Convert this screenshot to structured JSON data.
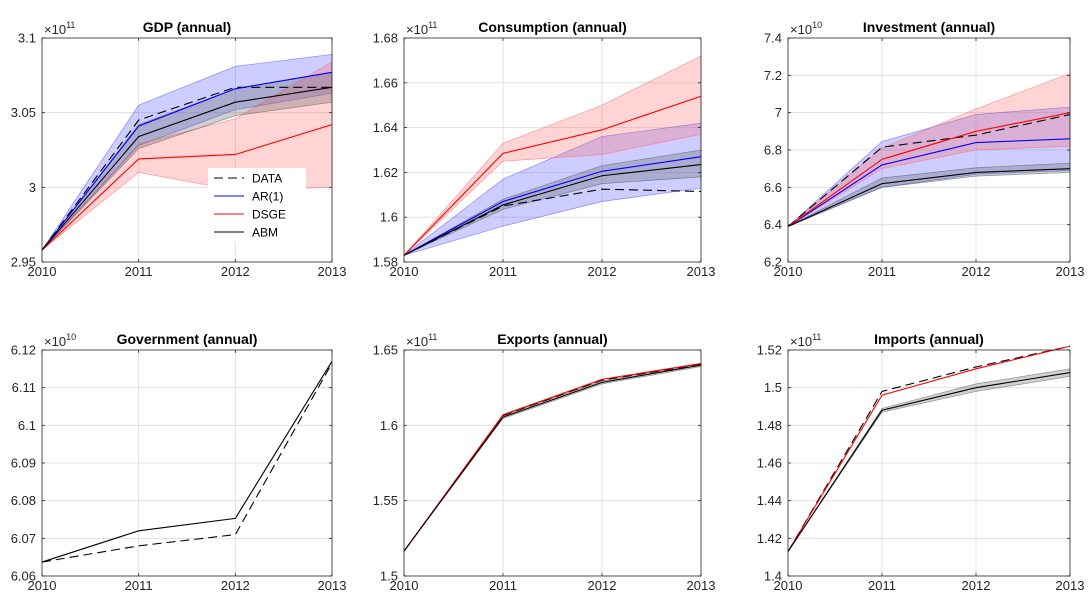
{
  "chart_data": [
    {
      "type": "line",
      "title": "GDP (annual)",
      "exponent_label": "×10",
      "exponent": "11",
      "x": [
        2010,
        2011,
        2012,
        2013
      ],
      "xticks": [
        "2010",
        "2011",
        "2012",
        "2013"
      ],
      "ylim": [
        2.95,
        3.1
      ],
      "yticks": [
        "2.95",
        "3",
        "3.05",
        "3.1"
      ],
      "grid": true,
      "legend": {
        "placement": "center-right",
        "entries": [
          "DATA",
          "AR(1)",
          "DSGE",
          "ABM"
        ]
      },
      "series": [
        {
          "name": "DATA",
          "color": "#000000",
          "dash": "dashed",
          "values": [
            2.958,
            3.045,
            3.067,
            3.067
          ]
        },
        {
          "name": "AR(1)",
          "color": "#0000ff",
          "dash": "solid",
          "values": [
            2.958,
            3.041,
            3.066,
            3.077
          ],
          "band_low": [
            2.958,
            3.028,
            3.052,
            3.063
          ],
          "band_high": [
            2.958,
            3.055,
            3.081,
            3.089
          ],
          "band_color": "#4d4dff"
        },
        {
          "name": "DSGE",
          "color": "#ff0000",
          "dash": "solid",
          "values": [
            2.958,
            3.019,
            3.022,
            3.042
          ],
          "band_low": [
            2.958,
            3.01,
            2.998,
            3.0
          ],
          "band_high": [
            2.958,
            3.029,
            3.046,
            3.084
          ],
          "band_color": "#ff6666"
        },
        {
          "name": "ABM",
          "color": "#000000",
          "dash": "solid",
          "values": [
            2.958,
            3.034,
            3.057,
            3.067
          ],
          "band_low": [
            2.958,
            3.026,
            3.048,
            3.057
          ],
          "band_high": [
            2.958,
            3.042,
            3.066,
            3.077
          ],
          "band_color": "#555555"
        }
      ]
    },
    {
      "type": "line",
      "title": "Consumption (annual)",
      "exponent_label": "×10",
      "exponent": "11",
      "x": [
        2010,
        2011,
        2012,
        2013
      ],
      "xticks": [
        "2010",
        "2011",
        "2012",
        "2013"
      ],
      "ylim": [
        1.58,
        1.68
      ],
      "yticks": [
        "1.58",
        "1.6",
        "1.62",
        "1.64",
        "1.66",
        "1.68"
      ],
      "grid": true,
      "series": [
        {
          "name": "DATA",
          "color": "#000000",
          "dash": "dashed",
          "values": [
            1.583,
            1.605,
            1.6125,
            1.6115
          ]
        },
        {
          "name": "AR(1)",
          "color": "#0000ff",
          "dash": "solid",
          "values": [
            1.583,
            1.607,
            1.6205,
            1.627
          ],
          "band_low": [
            1.583,
            1.596,
            1.607,
            1.613
          ],
          "band_high": [
            1.583,
            1.617,
            1.636,
            1.642
          ],
          "band_color": "#4d4dff"
        },
        {
          "name": "DSGE",
          "color": "#ff0000",
          "dash": "solid",
          "values": [
            1.583,
            1.6285,
            1.639,
            1.654
          ],
          "band_low": [
            1.583,
            1.625,
            1.628,
            1.637
          ],
          "band_high": [
            1.583,
            1.633,
            1.65,
            1.672
          ],
          "band_color": "#ff6666"
        },
        {
          "name": "ABM",
          "color": "#000000",
          "dash": "solid",
          "values": [
            1.583,
            1.6055,
            1.6185,
            1.6235
          ],
          "band_low": [
            1.583,
            1.6035,
            1.615,
            1.618
          ],
          "band_high": [
            1.583,
            1.608,
            1.623,
            1.63
          ],
          "band_color": "#555555"
        }
      ]
    },
    {
      "type": "line",
      "title": "Investment (annual)",
      "exponent_label": "×10",
      "exponent": "10",
      "x": [
        2010,
        2011,
        2012,
        2013
      ],
      "xticks": [
        "2010",
        "2011",
        "2012",
        "2013"
      ],
      "ylim": [
        6.2,
        7.4
      ],
      "yticks": [
        "6.2",
        "6.4",
        "6.6",
        "6.8",
        "7",
        "7.2",
        "7.4"
      ],
      "grid": true,
      "series": [
        {
          "name": "DATA",
          "color": "#000000",
          "dash": "dashed",
          "values": [
            6.39,
            6.815,
            6.88,
            6.99
          ]
        },
        {
          "name": "AR(1)",
          "color": "#0000ff",
          "dash": "solid",
          "values": [
            6.39,
            6.72,
            6.84,
            6.86
          ],
          "band_low": [
            6.39,
            6.6,
            6.67,
            6.69
          ],
          "band_high": [
            6.39,
            6.845,
            6.99,
            7.03
          ],
          "band_color": "#4d4dff"
        },
        {
          "name": "DSGE",
          "color": "#ff0000",
          "dash": "solid",
          "values": [
            6.39,
            6.75,
            6.9,
            7.0
          ],
          "band_low": [
            6.39,
            6.7,
            6.8,
            6.82
          ],
          "band_high": [
            6.39,
            6.81,
            7.02,
            7.21
          ],
          "band_color": "#ff6666"
        },
        {
          "name": "ABM",
          "color": "#000000",
          "dash": "solid",
          "values": [
            6.39,
            6.62,
            6.68,
            6.7
          ],
          "band_low": [
            6.39,
            6.6,
            6.66,
            6.68
          ],
          "band_high": [
            6.39,
            6.65,
            6.705,
            6.73
          ],
          "band_color": "#555555"
        }
      ]
    },
    {
      "type": "line",
      "title": "Government (annual)",
      "exponent_label": "×10",
      "exponent": "10",
      "x": [
        2010,
        2011,
        2012,
        2013
      ],
      "xticks": [
        "2010",
        "2011",
        "2012",
        "2013"
      ],
      "ylim": [
        6.06,
        6.12
      ],
      "yticks": [
        "6.06",
        "6.07",
        "6.08",
        "6.09",
        "6.1",
        "6.11",
        "6.12"
      ],
      "grid": true,
      "series": [
        {
          "name": "DATA",
          "color": "#000000",
          "dash": "dashed",
          "values": [
            6.0637,
            6.068,
            6.071,
            6.1165
          ]
        },
        {
          "name": "ABM",
          "color": "#000000",
          "dash": "solid",
          "values": [
            6.0637,
            6.072,
            6.0753,
            6.117
          ]
        }
      ]
    },
    {
      "type": "line",
      "title": "Exports (annual)",
      "exponent_label": "×10",
      "exponent": "11",
      "x": [
        2010,
        2011,
        2012,
        2013
      ],
      "xticks": [
        "2010",
        "2011",
        "2012",
        "2013"
      ],
      "ylim": [
        1.5,
        1.65
      ],
      "yticks": [
        "1.5",
        "1.55",
        "1.6",
        "1.65"
      ],
      "grid": true,
      "series": [
        {
          "name": "DATA",
          "color": "#000000",
          "dash": "dashed",
          "values": [
            1.5165,
            1.6065,
            1.63,
            1.6405
          ]
        },
        {
          "name": "DSGE",
          "color": "#ff0000",
          "dash": "solid",
          "values": [
            1.5165,
            1.607,
            1.6305,
            1.641
          ]
        },
        {
          "name": "ABM",
          "color": "#000000",
          "dash": "solid",
          "values": [
            1.5165,
            1.6055,
            1.6285,
            1.64
          ],
          "band_low": [
            1.5165,
            1.6045,
            1.6275,
            1.639
          ],
          "band_high": [
            1.5165,
            1.6065,
            1.6295,
            1.641
          ],
          "band_color": "#555555"
        }
      ]
    },
    {
      "type": "line",
      "title": "Imports (annual)",
      "exponent_label": "×10",
      "exponent": "11",
      "x": [
        2010,
        2011,
        2012,
        2013
      ],
      "xticks": [
        "2010",
        "2011",
        "2012",
        "2013"
      ],
      "ylim": [
        1.4,
        1.52
      ],
      "yticks": [
        "1.4",
        "1.42",
        "1.44",
        "1.46",
        "1.48",
        "1.5",
        "1.52"
      ],
      "grid": true,
      "series": [
        {
          "name": "DATA",
          "color": "#000000",
          "dash": "dashed",
          "values": [
            1.413,
            1.498,
            1.511,
            1.522
          ]
        },
        {
          "name": "DSGE",
          "color": "#ff0000",
          "dash": "solid",
          "values": [
            1.413,
            1.496,
            1.51,
            1.522
          ]
        },
        {
          "name": "ABM",
          "color": "#000000",
          "dash": "solid",
          "values": [
            1.413,
            1.488,
            1.5,
            1.508
          ],
          "band_low": [
            1.413,
            1.487,
            1.498,
            1.506
          ],
          "band_high": [
            1.413,
            1.489,
            1.502,
            1.51
          ],
          "band_color": "#555555"
        }
      ]
    }
  ]
}
